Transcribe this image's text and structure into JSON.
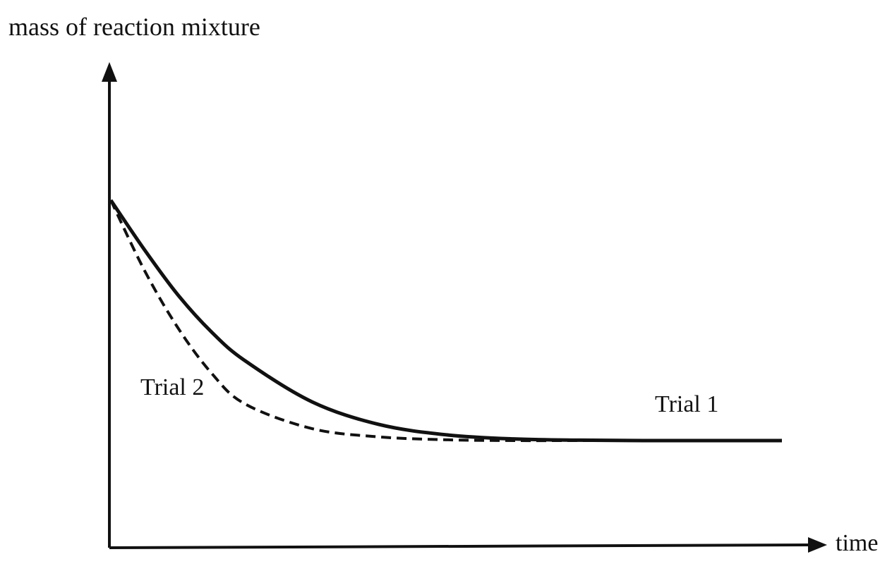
{
  "chart_data": {
    "type": "line",
    "ylabel": "mass of reaction mixture",
    "xlabel": "time",
    "grid": false,
    "xlim": [
      0,
      10
    ],
    "ylim": [
      0,
      10
    ],
    "series": [
      {
        "name": "Trial 1",
        "style": "solid",
        "color": "#111111",
        "x": [
          0,
          0.5,
          1,
          1.5,
          2,
          3,
          4,
          5,
          6,
          7,
          8,
          9,
          10
        ],
        "y": [
          10,
          8.8,
          7.7,
          6.8,
          6.1,
          5.1,
          4.55,
          4.3,
          4.2,
          4.17,
          4.16,
          4.16,
          4.16
        ]
      },
      {
        "name": "Trial 2",
        "style": "dashed",
        "color": "#111111",
        "x": [
          0,
          0.5,
          1,
          1.5,
          2,
          3,
          4,
          5,
          6,
          7,
          8,
          9,
          10
        ],
        "y": [
          10,
          8.3,
          6.9,
          5.8,
          5.05,
          4.45,
          4.25,
          4.18,
          4.16,
          4.16,
          4.16,
          4.16,
          4.16
        ]
      }
    ]
  }
}
